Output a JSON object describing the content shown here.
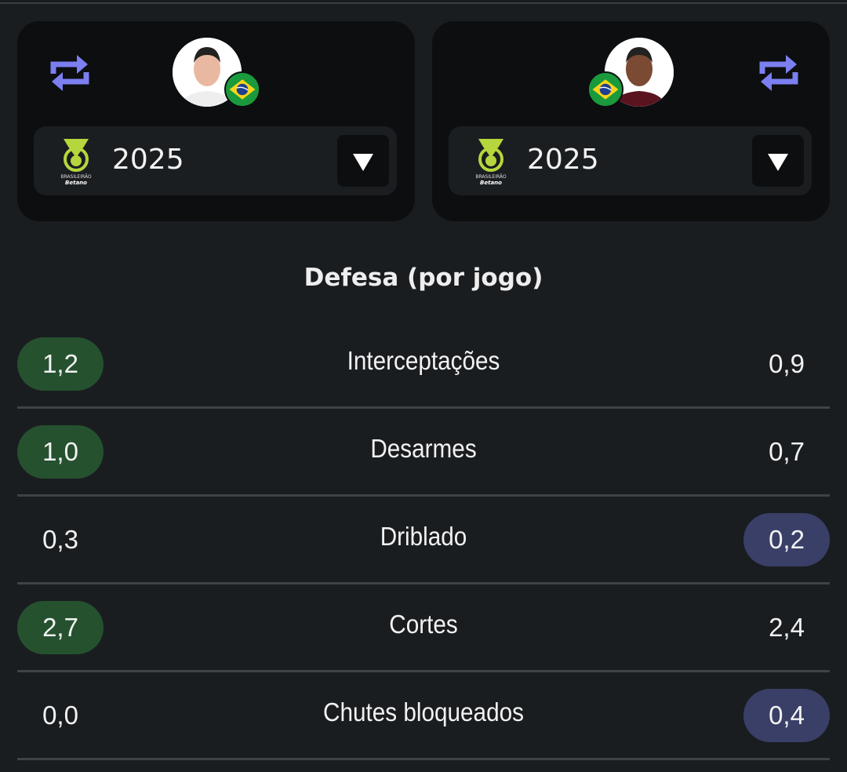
{
  "players": [
    {
      "season": "2025",
      "league": "Brasileirão Betano",
      "nationality": "Brazil"
    },
    {
      "season": "2025",
      "league": "Brasileirão Betano",
      "nationality": "Brazil"
    }
  ],
  "section_title": "Defesa (por jogo)",
  "stats": [
    {
      "label": "Interceptações",
      "left": "1,2",
      "right": "0,9",
      "winner": "left"
    },
    {
      "label": "Desarmes",
      "left": "1,0",
      "right": "0,7",
      "winner": "left"
    },
    {
      "label": "Driblado",
      "left": "0,3",
      "right": "0,2",
      "winner": "right"
    },
    {
      "label": "Cortes",
      "left": "2,7",
      "right": "2,4",
      "winner": "left"
    },
    {
      "label": "Chutes bloqueados",
      "left": "0,0",
      "right": "0,4",
      "winner": "right"
    }
  ],
  "colors": {
    "left_highlight": "#25512f",
    "right_highlight": "#393f66",
    "swap_icon": "#7b7ff0"
  }
}
